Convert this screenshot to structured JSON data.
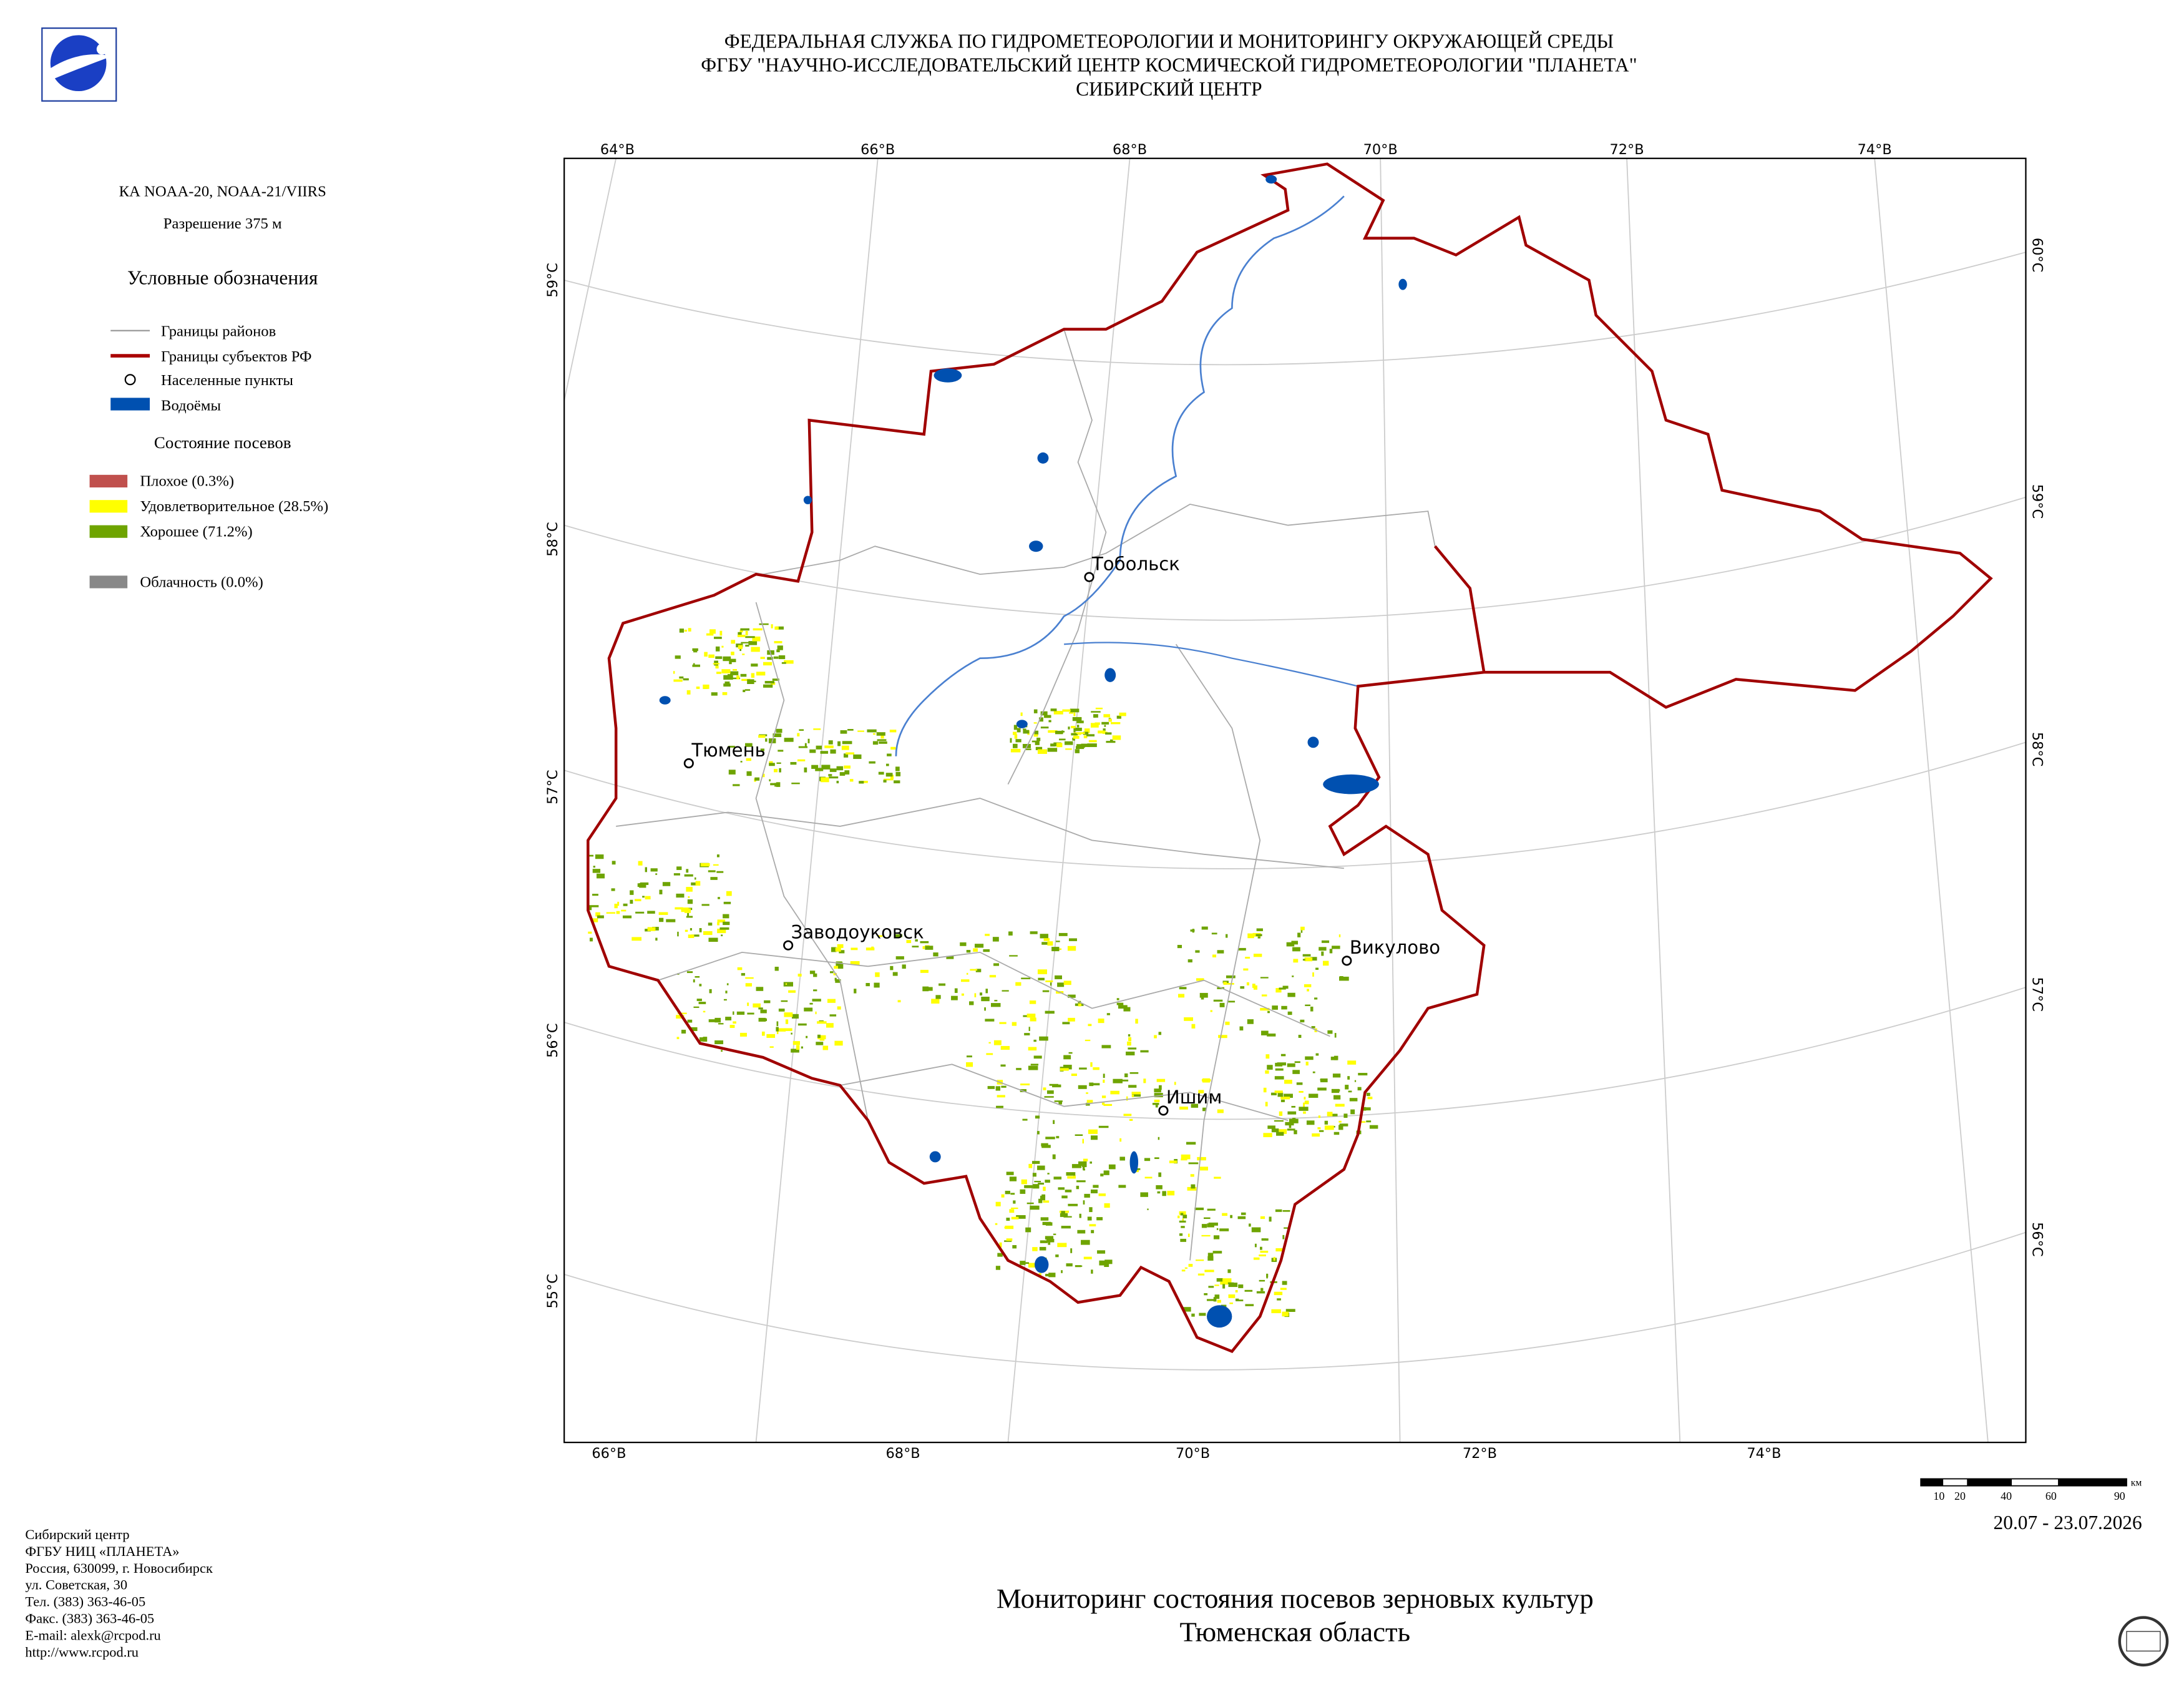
{
  "header": {
    "lines": [
      "ФЕДЕРАЛЬНАЯ СЛУЖБА ПО ГИДРОМЕТЕОРОЛОГИИ И МОНИТОРИНГУ ОКРУЖАЮЩЕЙ СРЕДЫ",
      "ФГБУ \"НАУЧНО-ИССЛЕДОВАТЕЛЬСКИЙ ЦЕНТР КОСМИЧЕСКОЙ ГИДРОМЕТЕОРОЛОГИИ \"ПЛАНЕТА\"",
      "СИБИРСКИЙ ЦЕНТР"
    ]
  },
  "info": {
    "satellite": "КА NOAA-20, NOAA-21/VIIRS",
    "resolution": "Разрешение 375 м"
  },
  "legend": {
    "title": "Условные обозначения",
    "items": [
      "Границы районов",
      "Границы субъектов РФ",
      "Населенные пункты",
      "Водоёмы"
    ],
    "crops_title": "Состояние посевов",
    "crops": [
      "Плохое (0.3%)",
      "Удовлетворительное (28.5%)",
      "Хорошее (71.2%)"
    ],
    "cloud": "Облачность (0.0%)"
  },
  "map": {
    "top_labels": [
      "64°В",
      "66°В",
      "68°В",
      "70°В",
      "72°В",
      "74°В"
    ],
    "bottom_labels": [
      "66°В",
      "68°В",
      "70°В",
      "72°В",
      "74°В"
    ],
    "left_labels": [
      "59°С",
      "58°С",
      "57°С",
      "56°С",
      "55°С"
    ],
    "right_labels": [
      "60°С",
      "59°С",
      "58°С",
      "57°С",
      "56°С"
    ],
    "cities": [
      "Тобольск",
      "Тюмень",
      "Заводоуковск",
      "Викулово",
      "Ишим"
    ]
  },
  "scale": {
    "labels": [
      "10",
      "20",
      "40",
      "60",
      "90"
    ],
    "unit": "км"
  },
  "date": "20.07 - 23.07.2026",
  "footer": {
    "lines": [
      "Сибирский центр",
      "ФГБУ НИЦ «ПЛАНЕТА»",
      "Россия, 630099, г. Новосибирск",
      "ул. Советская, 30",
      "Тел. (383) 363-46-05",
      "Факс. (383) 363-46-05",
      "E-mail: alexk@rcpod.ru",
      "http://www.rcpod.ru"
    ]
  },
  "title": {
    "lines": [
      "Мониторинг состояния посевов зерновых культур",
      "Тюменская область"
    ]
  }
}
